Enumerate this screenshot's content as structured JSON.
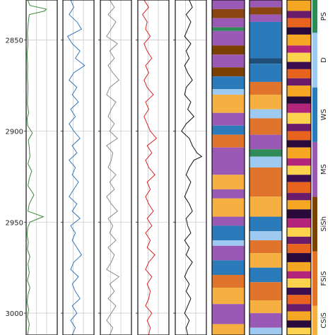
{
  "chart_data": {
    "type": "well-log",
    "depth_range": [
      2828,
      3012
    ],
    "depth_ticks": [
      2850,
      2900,
      2950,
      3000
    ],
    "grid": true,
    "curves": [
      {
        "name": "",
        "color": "#3a8a3a",
        "xlim": [
          0,
          1
        ],
        "depth": [
          2828,
          2831,
          2833,
          2834,
          2836,
          2840,
          2846,
          2852,
          2858,
          2864,
          2870,
          2876,
          2880,
          2885,
          2890,
          2893,
          2897,
          2901,
          2905,
          2909,
          2914,
          2918,
          2922,
          2926,
          2930,
          2935,
          2940,
          2944,
          2947,
          2950,
          2953,
          2957,
          2961,
          2965,
          2969,
          2973,
          2978,
          2982,
          2986,
          2990,
          2994,
          2998,
          3002,
          3006,
          3012
        ],
        "value": [
          0.05,
          0.12,
          0.65,
          0.6,
          0.1,
          0.07,
          0.04,
          0.06,
          0.03,
          0.05,
          0.04,
          0.06,
          0.05,
          0.04,
          0.08,
          0.03,
          0.05,
          0.2,
          0.07,
          0.1,
          0.12,
          0.06,
          0.18,
          0.1,
          0.06,
          0.25,
          0.1,
          0.06,
          0.55,
          0.12,
          0.05,
          0.03,
          0.07,
          0.04,
          0.12,
          0.06,
          0.1,
          0.04,
          0.12,
          0.06,
          0.03,
          0.08,
          0.04,
          0.1,
          0.05
        ]
      },
      {
        "name": "",
        "color": "#3a78b8",
        "xlim": [
          0,
          1
        ],
        "depth": [
          2828,
          2832,
          2836,
          2840,
          2844,
          2848,
          2852,
          2856,
          2860,
          2864,
          2868,
          2872,
          2876,
          2880,
          2884,
          2888,
          2892,
          2896,
          2900,
          2904,
          2908,
          2912,
          2916,
          2920,
          2924,
          2928,
          2932,
          2936,
          2940,
          2944,
          2948,
          2952,
          2956,
          2960,
          2964,
          2968,
          2972,
          2976,
          2980,
          2984,
          2988,
          2992,
          2996,
          3000,
          3004,
          3008,
          3012
        ],
        "value": [
          0.25,
          0.35,
          0.2,
          0.45,
          0.6,
          0.15,
          0.3,
          0.55,
          0.4,
          0.7,
          0.35,
          0.2,
          0.45,
          0.3,
          0.5,
          0.25,
          0.4,
          0.2,
          0.35,
          0.55,
          0.3,
          0.45,
          0.2,
          0.4,
          0.3,
          0.5,
          0.35,
          0.2,
          0.45,
          0.3,
          0.55,
          0.25,
          0.4,
          0.3,
          0.45,
          0.6,
          0.35,
          0.25,
          0.5,
          0.3,
          0.4,
          0.55,
          0.3,
          0.45,
          0.25,
          0.4,
          0.3
        ]
      },
      {
        "name": "",
        "color": "#8c8c8c",
        "xlim": [
          0,
          1
        ],
        "depth": [
          2828,
          2832,
          2836,
          2840,
          2844,
          2848,
          2852,
          2856,
          2860,
          2864,
          2868,
          2872,
          2876,
          2880,
          2884,
          2888,
          2892,
          2896,
          2900,
          2904,
          2908,
          2912,
          2916,
          2920,
          2924,
          2928,
          2932,
          2936,
          2940,
          2944,
          2948,
          2952,
          2956,
          2960,
          2964,
          2968,
          2972,
          2976,
          2980,
          2984,
          2988,
          2992,
          2996,
          3000,
          3004,
          3008,
          3012
        ],
        "value": [
          0.3,
          0.45,
          0.25,
          0.5,
          0.35,
          0.2,
          0.55,
          0.3,
          0.45,
          0.25,
          0.4,
          0.6,
          0.3,
          0.2,
          0.5,
          0.35,
          0.25,
          0.45,
          0.3,
          0.55,
          0.2,
          0.4,
          0.35,
          0.25,
          0.5,
          0.3,
          0.45,
          0.2,
          0.35,
          0.55,
          0.25,
          0.4,
          0.3,
          0.5,
          0.25,
          0.45,
          0.35,
          0.2,
          0.6,
          0.3,
          0.45,
          0.25,
          0.5,
          0.35,
          0.2,
          0.4,
          0.3
        ]
      },
      {
        "name": "",
        "color": "#d62728",
        "xlim": [
          0,
          1
        ],
        "depth": [
          2828,
          2832,
          2836,
          2840,
          2844,
          2848,
          2852,
          2856,
          2860,
          2864,
          2868,
          2872,
          2876,
          2880,
          2884,
          2888,
          2892,
          2896,
          2900,
          2904,
          2908,
          2912,
          2916,
          2920,
          2924,
          2928,
          2932,
          2936,
          2940,
          2944,
          2948,
          2952,
          2956,
          2960,
          2964,
          2968,
          2972,
          2976,
          2980,
          2984,
          2988,
          2992,
          2996,
          3000,
          3004,
          3008,
          3012
        ],
        "value": [
          0.2,
          0.35,
          0.15,
          0.3,
          0.25,
          0.4,
          0.2,
          0.3,
          0.45,
          0.25,
          0.35,
          0.2,
          0.3,
          0.5,
          0.25,
          0.35,
          0.2,
          0.3,
          0.4,
          0.6,
          0.3,
          0.45,
          0.25,
          0.35,
          0.55,
          0.3,
          0.4,
          0.25,
          0.35,
          0.5,
          0.3,
          0.45,
          0.25,
          0.4,
          0.3,
          0.55,
          0.35,
          0.25,
          0.45,
          0.3,
          0.4,
          0.35,
          0.25,
          0.45,
          0.3,
          0.4,
          0.35
        ]
      },
      {
        "name": "",
        "color": "#111111",
        "xlim": [
          0,
          1
        ],
        "depth": [
          2828,
          2832,
          2836,
          2840,
          2844,
          2848,
          2852,
          2856,
          2860,
          2864,
          2868,
          2872,
          2876,
          2880,
          2884,
          2888,
          2892,
          2896,
          2900,
          2904,
          2908,
          2912,
          2914,
          2916,
          2920,
          2924,
          2928,
          2932,
          2936,
          2940,
          2944,
          2948,
          2952,
          2956,
          2960,
          2964,
          2968,
          2972,
          2976,
          2980,
          2984,
          2988,
          2992,
          2996,
          3000,
          3004,
          3008,
          3012
        ],
        "value": [
          0.45,
          0.55,
          0.35,
          0.5,
          0.4,
          0.3,
          0.5,
          0.35,
          0.45,
          0.3,
          0.4,
          0.55,
          0.35,
          0.3,
          0.5,
          0.4,
          0.6,
          0.35,
          0.2,
          0.45,
          0.55,
          0.7,
          0.85,
          0.6,
          0.45,
          0.35,
          0.5,
          0.4,
          0.3,
          0.45,
          0.55,
          0.35,
          0.4,
          0.5,
          0.3,
          0.45,
          0.35,
          0.55,
          0.4,
          0.3,
          0.45,
          0.35,
          0.5,
          0.4,
          0.3,
          0.45,
          0.35,
          0.4
        ]
      }
    ],
    "facies_columns": [
      {
        "name": "",
        "layers": [
          {
            "top": 2828,
            "base": 2833,
            "color": "#9b59b6"
          },
          {
            "top": 2833,
            "base": 2838,
            "color": "#8b4513"
          },
          {
            "top": 2838,
            "base": 2843,
            "color": "#9b59b6"
          },
          {
            "top": 2843,
            "base": 2845,
            "color": "#2e8b57"
          },
          {
            "top": 2845,
            "base": 2853,
            "color": "#9b59b6"
          },
          {
            "top": 2853,
            "base": 2858,
            "color": "#7b3f00"
          },
          {
            "top": 2858,
            "base": 2865,
            "color": "#9b59b6"
          },
          {
            "top": 2865,
            "base": 2870,
            "color": "#7b3f00"
          },
          {
            "top": 2870,
            "base": 2877,
            "color": "#2b7bba"
          },
          {
            "top": 2877,
            "base": 2880,
            "color": "#9ec9f0"
          },
          {
            "top": 2880,
            "base": 2890,
            "color": "#f5b041"
          },
          {
            "top": 2890,
            "base": 2897,
            "color": "#9b59b6"
          },
          {
            "top": 2897,
            "base": 2902,
            "color": "#2b7bba"
          },
          {
            "top": 2902,
            "base": 2909,
            "color": "#e0742c"
          },
          {
            "top": 2909,
            "base": 2924,
            "color": "#9b59b6"
          },
          {
            "top": 2924,
            "base": 2932,
            "color": "#f5b041"
          },
          {
            "top": 2932,
            "base": 2937,
            "color": "#9b59b6"
          },
          {
            "top": 2937,
            "base": 2947,
            "color": "#f5b041"
          },
          {
            "top": 2947,
            "base": 2952,
            "color": "#9b59b6"
          },
          {
            "top": 2952,
            "base": 2960,
            "color": "#2b7bba"
          },
          {
            "top": 2960,
            "base": 2963,
            "color": "#9ec9f0"
          },
          {
            "top": 2963,
            "base": 2971,
            "color": "#9b59b6"
          },
          {
            "top": 2971,
            "base": 2979,
            "color": "#2b7bba"
          },
          {
            "top": 2979,
            "base": 2986,
            "color": "#e0742c"
          },
          {
            "top": 2986,
            "base": 2995,
            "color": "#f5b041"
          },
          {
            "top": 2995,
            "base": 3006,
            "color": "#9b59b6"
          },
          {
            "top": 3006,
            "base": 3012,
            "color": "#f5b041"
          }
        ]
      },
      {
        "name": "",
        "layers": [
          {
            "top": 2828,
            "base": 2832,
            "color": "#9b59b6"
          },
          {
            "top": 2832,
            "base": 2836,
            "color": "#8b4513"
          },
          {
            "top": 2836,
            "base": 2840,
            "color": "#9b59b6"
          },
          {
            "top": 2840,
            "base": 2860,
            "color": "#2b7bba"
          },
          {
            "top": 2860,
            "base": 2863,
            "color": "#1f4e79"
          },
          {
            "top": 2863,
            "base": 2873,
            "color": "#2b7bba"
          },
          {
            "top": 2873,
            "base": 2880,
            "color": "#e0742c"
          },
          {
            "top": 2880,
            "base": 2888,
            "color": "#f5b041"
          },
          {
            "top": 2888,
            "base": 2893,
            "color": "#9ec9f0"
          },
          {
            "top": 2893,
            "base": 2902,
            "color": "#e0742c"
          },
          {
            "top": 2902,
            "base": 2910,
            "color": "#9b59b6"
          },
          {
            "top": 2910,
            "base": 2914,
            "color": "#2e8b57"
          },
          {
            "top": 2914,
            "base": 2920,
            "color": "#9ec9f0"
          },
          {
            "top": 2920,
            "base": 2936,
            "color": "#e0742c"
          },
          {
            "top": 2936,
            "base": 2947,
            "color": "#f5b041"
          },
          {
            "top": 2947,
            "base": 2955,
            "color": "#2b7bba"
          },
          {
            "top": 2955,
            "base": 2960,
            "color": "#9ec9f0"
          },
          {
            "top": 2960,
            "base": 2967,
            "color": "#e0742c"
          },
          {
            "top": 2967,
            "base": 2975,
            "color": "#f5b041"
          },
          {
            "top": 2975,
            "base": 2983,
            "color": "#2b7bba"
          },
          {
            "top": 2983,
            "base": 2993,
            "color": "#e0742c"
          },
          {
            "top": 2993,
            "base": 3000,
            "color": "#f5b041"
          },
          {
            "top": 3000,
            "base": 3008,
            "color": "#9b59b6"
          },
          {
            "top": 3008,
            "base": 3012,
            "color": "#9ec9f0"
          }
        ]
      },
      {
        "name": "",
        "layers": [
          {
            "top": 2828,
            "base": 2834,
            "color": "#f5a623"
          },
          {
            "top": 2834,
            "base": 2838,
            "color": "#6a1b6a"
          },
          {
            "top": 2838,
            "base": 2843,
            "color": "#e8641e"
          },
          {
            "top": 2843,
            "base": 2847,
            "color": "#2a0a3a"
          },
          {
            "top": 2847,
            "base": 2853,
            "color": "#f5a623"
          },
          {
            "top": 2853,
            "base": 2857,
            "color": "#b2257a"
          },
          {
            "top": 2857,
            "base": 2862,
            "color": "#fcd34d"
          },
          {
            "top": 2862,
            "base": 2866,
            "color": "#3b0f4f"
          },
          {
            "top": 2866,
            "base": 2871,
            "color": "#e8641e"
          },
          {
            "top": 2871,
            "base": 2875,
            "color": "#6a1b6a"
          },
          {
            "top": 2875,
            "base": 2881,
            "color": "#f5a623"
          },
          {
            "top": 2881,
            "base": 2885,
            "color": "#2a0a3a"
          },
          {
            "top": 2885,
            "base": 2890,
            "color": "#b2257a"
          },
          {
            "top": 2890,
            "base": 2896,
            "color": "#fcd34d"
          },
          {
            "top": 2896,
            "base": 2900,
            "color": "#6a1b6a"
          },
          {
            "top": 2900,
            "base": 2905,
            "color": "#e8641e"
          },
          {
            "top": 2905,
            "base": 2909,
            "color": "#2a0a3a"
          },
          {
            "top": 2909,
            "base": 2915,
            "color": "#f5a623"
          },
          {
            "top": 2915,
            "base": 2919,
            "color": "#b2257a"
          },
          {
            "top": 2919,
            "base": 2924,
            "color": "#fcd34d"
          },
          {
            "top": 2924,
            "base": 2928,
            "color": "#3b0f4f"
          },
          {
            "top": 2928,
            "base": 2934,
            "color": "#e8641e"
          },
          {
            "top": 2934,
            "base": 2938,
            "color": "#6a1b6a"
          },
          {
            "top": 2938,
            "base": 2943,
            "color": "#f5a623"
          },
          {
            "top": 2943,
            "base": 2948,
            "color": "#2a0a3a"
          },
          {
            "top": 2948,
            "base": 2953,
            "color": "#b2257a"
          },
          {
            "top": 2953,
            "base": 2958,
            "color": "#fcd34d"
          },
          {
            "top": 2958,
            "base": 2962,
            "color": "#6a1b6a"
          },
          {
            "top": 2962,
            "base": 2967,
            "color": "#e8641e"
          },
          {
            "top": 2967,
            "base": 2972,
            "color": "#2a0a3a"
          },
          {
            "top": 2972,
            "base": 2977,
            "color": "#f5a623"
          },
          {
            "top": 2977,
            "base": 2981,
            "color": "#b2257a"
          },
          {
            "top": 2981,
            "base": 2986,
            "color": "#fcd34d"
          },
          {
            "top": 2986,
            "base": 2990,
            "color": "#3b0f4f"
          },
          {
            "top": 2990,
            "base": 2995,
            "color": "#e8641e"
          },
          {
            "top": 2995,
            "base": 2999,
            "color": "#6a1b6a"
          },
          {
            "top": 2999,
            "base": 3004,
            "color": "#f5a623"
          },
          {
            "top": 3004,
            "base": 3008,
            "color": "#2a0a3a"
          },
          {
            "top": 3008,
            "base": 3012,
            "color": "#fcd34d"
          }
        ]
      }
    ],
    "facies_legend": [
      {
        "label": "CSiS",
        "color": "#f5b041",
        "top": 2996,
        "base": 3012
      },
      {
        "label": "FSiS",
        "color": "#e0742c",
        "top": 2966,
        "base": 2996
      },
      {
        "label": "SiSh",
        "color": "#7b3f00",
        "top": 2936,
        "base": 2966
      },
      {
        "label": "MS",
        "color": "#9b59b6",
        "top": 2906,
        "base": 2936
      },
      {
        "label": "WS",
        "color": "#2b7bba",
        "top": 2876,
        "base": 2906
      },
      {
        "label": "D",
        "color": "#9ec9f0",
        "top": 2846,
        "base": 2876
      },
      {
        "label": "PS",
        "color": "#2e8b57",
        "top": 2828,
        "base": 2846
      }
    ]
  }
}
